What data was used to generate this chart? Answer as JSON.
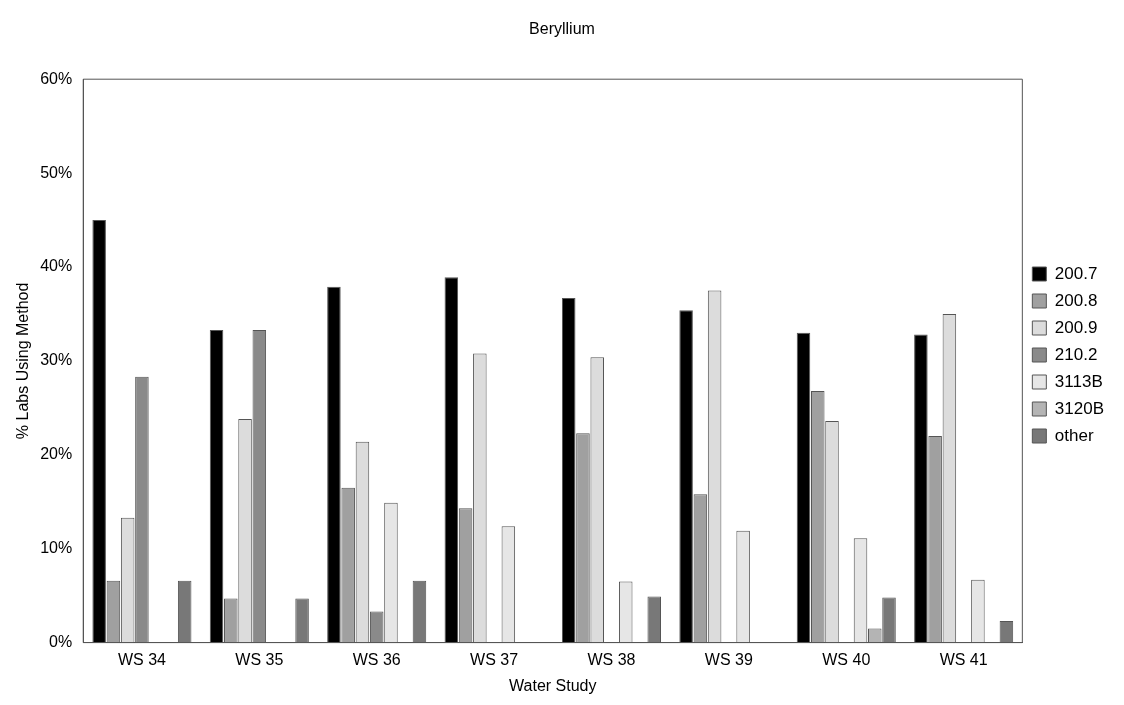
{
  "chart_data": {
    "type": "bar",
    "title": "Beryllium",
    "xlabel": "Water Study",
    "ylabel": "% Labs Using Method",
    "categories": [
      "WS 34",
      "WS 35",
      "WS 36",
      "WS 37",
      "WS 38",
      "WS 39",
      "WS 40",
      "WS 41"
    ],
    "series": [
      {
        "name": "200.7",
        "color": "#000000",
        "values": [
          45,
          33.3,
          37.9,
          38.9,
          36.7,
          35.4,
          33,
          32.8
        ]
      },
      {
        "name": "200.8",
        "color": "#a0a0a0",
        "values": [
          6.6,
          4.7,
          16.5,
          14.3,
          22.3,
          15.8,
          26.8,
          22
        ]
      },
      {
        "name": "200.9",
        "color": "#dcdcdc",
        "values": [
          13.3,
          23.8,
          21.4,
          30.8,
          30.4,
          37.5,
          23.6,
          35
        ]
      },
      {
        "name": "210.2",
        "color": "#8a8a8a",
        "values": [
          28.3,
          33.3,
          3.3,
          0,
          0,
          0,
          0,
          0
        ]
      },
      {
        "name": "3113B",
        "color": "#e6e6e6",
        "values": [
          0,
          0,
          14.9,
          12.4,
          6.5,
          11.9,
          11.1,
          6.7
        ]
      },
      {
        "name": "3120B",
        "color": "#b4b4b4",
        "values": [
          0,
          0,
          0,
          0,
          0,
          0,
          1.5,
          0
        ]
      },
      {
        "name": "other",
        "color": "#787878",
        "values": [
          6.6,
          4.7,
          6.6,
          0,
          4.9,
          0,
          4.8,
          2.3
        ]
      }
    ],
    "ylim": [
      0,
      60
    ],
    "yticks": [
      {
        "value": 0,
        "label": "0%"
      },
      {
        "value": 10,
        "label": "10%"
      },
      {
        "value": 20,
        "label": "20%"
      },
      {
        "value": 30,
        "label": "30%"
      },
      {
        "value": 40,
        "label": "40%"
      },
      {
        "value": 50,
        "label": "50%"
      },
      {
        "value": 60,
        "label": "60%"
      }
    ],
    "grid": false,
    "legend": "right"
  }
}
